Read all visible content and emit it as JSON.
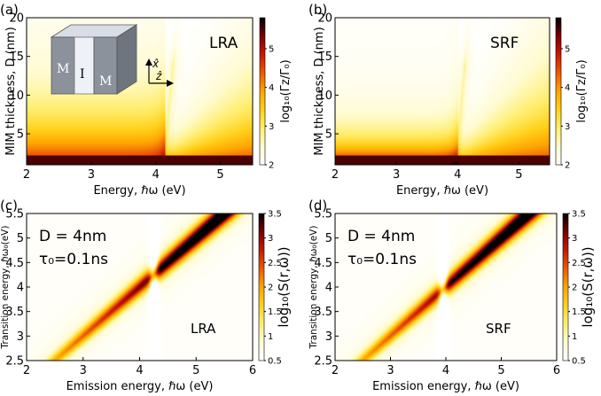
{
  "chart_data": [
    {
      "panel_label": "(a)",
      "type": "heatmap",
      "annotation": "LRA",
      "inset_labels": [
        "M",
        "I",
        "M",
        "x̂",
        "ẑ"
      ],
      "xlabel": "Energy, ℏω (eV)",
      "ylabel": "MIM thickness, D (nm)",
      "colorbar_label": "log₁₀(Γz/Γ₀)",
      "xlim": [
        2,
        5.5
      ],
      "ylim": [
        1,
        20
      ],
      "xticks": [
        2,
        3,
        4,
        5
      ],
      "yticks": [
        5,
        10,
        15,
        20
      ],
      "zlim": [
        2,
        5.8
      ],
      "cbticks": [
        2,
        3,
        4,
        5
      ],
      "ridge_energy_eV": 4.15
    },
    {
      "panel_label": "(b)",
      "type": "heatmap",
      "annotation": "SRF",
      "xlabel": "Energy, ℏω (eV)",
      "ylabel": "MIM thickness, D (nm)",
      "colorbar_label": "log₁₀(Γz/Γ₀)",
      "xlim": [
        2,
        5.5
      ],
      "ylim": [
        1,
        20
      ],
      "xticks": [
        2,
        3,
        4,
        5
      ],
      "yticks": [
        5,
        10,
        15,
        20
      ],
      "zlim": [
        2,
        5.8
      ],
      "cbticks": [
        2,
        3,
        4,
        5
      ],
      "ridge_energy_eV": 4.0
    },
    {
      "panel_label": "(c)",
      "type": "heatmap",
      "annotation": "LRA",
      "params": [
        "D = 4nm",
        "τ₀=0.1ns"
      ],
      "xlabel": "Emission energy, ℏω (eV)",
      "ylabel": "Transition energy, ℏω₀(eV)",
      "colorbar_label": "log₁₀(S(r,ω))",
      "xlim": [
        2,
        6
      ],
      "ylim": [
        2.5,
        5.5
      ],
      "xticks": [
        2,
        3,
        4,
        5,
        6
      ],
      "yticks": [
        2.5,
        3,
        3.5,
        4,
        4.5,
        5,
        5.5
      ],
      "zlim": [
        0.5,
        3.5
      ],
      "cbticks": [
        0.5,
        1,
        1.5,
        2,
        2.5,
        3,
        3.5
      ],
      "dip_energy_eV": 4.25
    },
    {
      "panel_label": "(d)",
      "type": "heatmap",
      "annotation": "SRF",
      "params": [
        "D = 4nm",
        "τ₀=0.1ns"
      ],
      "xlabel": "Emission energy, ℏω (eV)",
      "ylabel": "Transition energy, ℏω₀(eV)",
      "colorbar_label": "log₁₀(S(r,ω))",
      "xlim": [
        2,
        6
      ],
      "ylim": [
        2.5,
        5.5
      ],
      "xticks": [
        2,
        3,
        4,
        5,
        6
      ],
      "yticks": [
        2.5,
        3,
        3.5,
        4,
        4.5,
        5,
        5.5
      ],
      "zlim": [
        0.5,
        3.5
      ],
      "cbticks": [
        0.5,
        1,
        1.5,
        2,
        2.5,
        3,
        3.5
      ],
      "dip_energy_eV": 3.95
    }
  ],
  "colormap": [
    "#ffffff",
    "#fffbd0",
    "#ffee70",
    "#ffd21c",
    "#ffa500",
    "#ee5a00",
    "#c81a00",
    "#7a0000",
    "#000000"
  ]
}
